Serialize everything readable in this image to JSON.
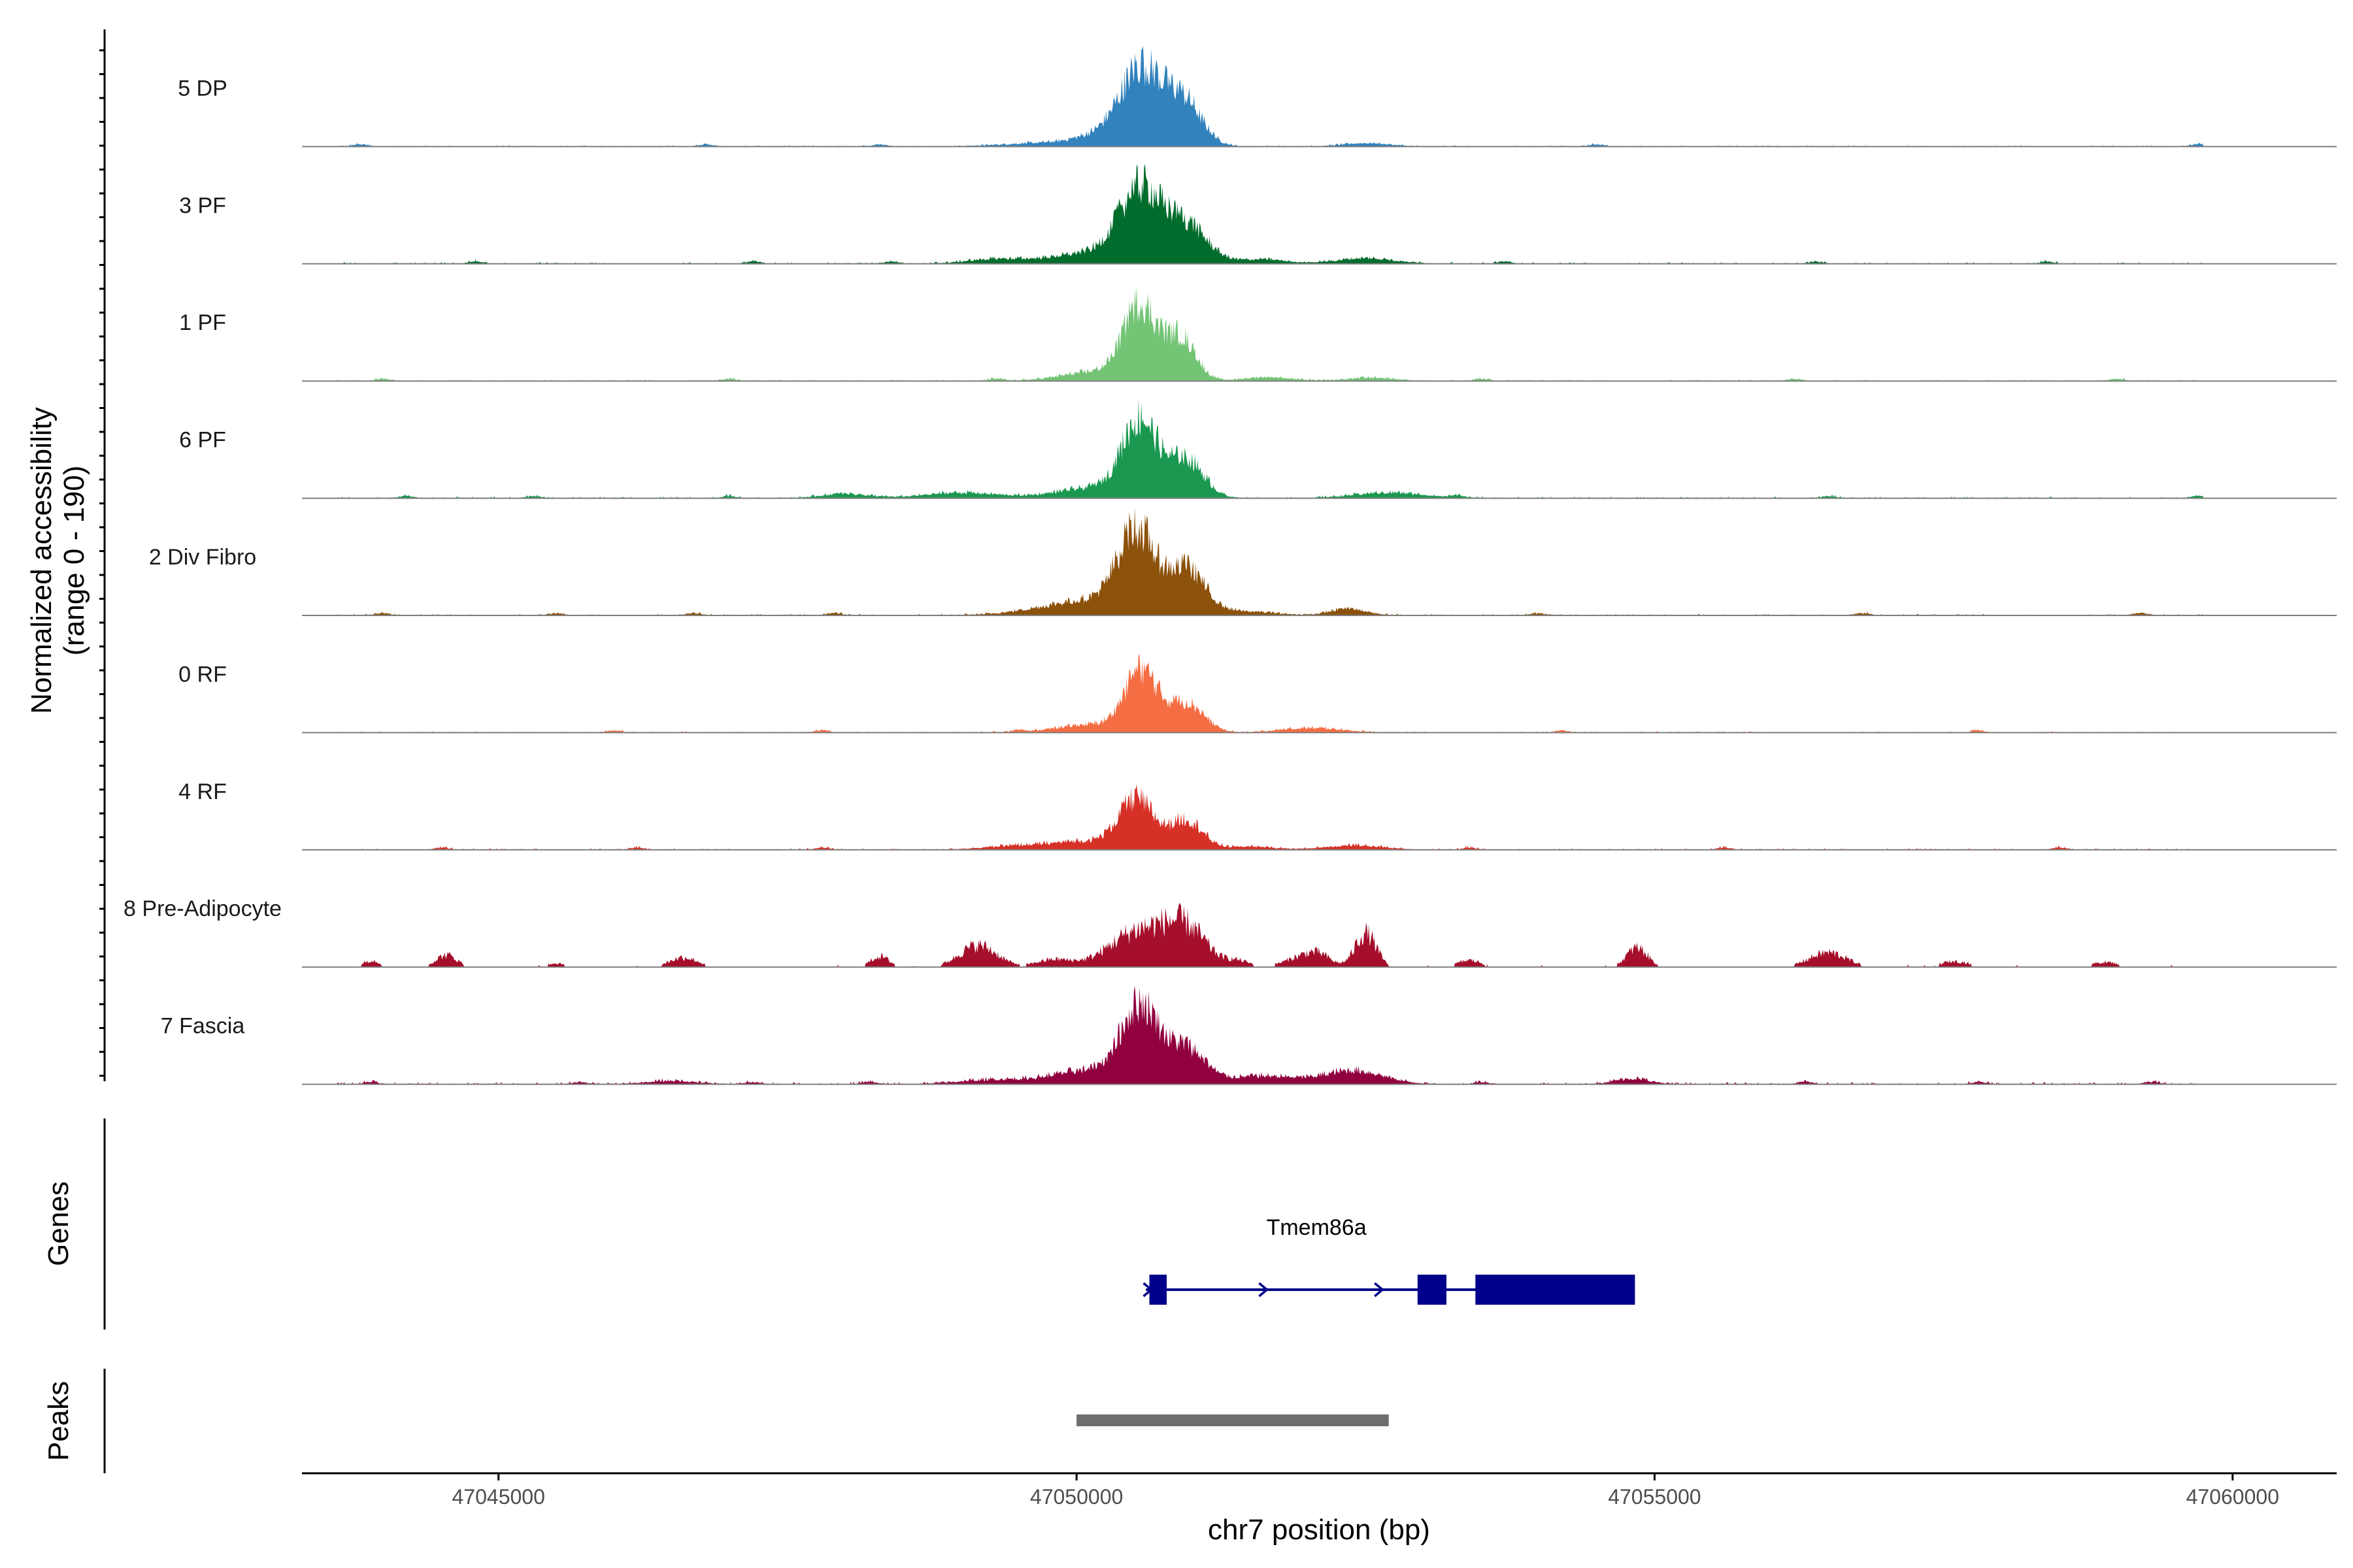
{
  "chart_data": {
    "type": "area",
    "title": "",
    "xlabel": "chr7 position (bp)",
    "ylabel": "Normalized accessibility",
    "ylabel_range": "(range 0 - 190)",
    "ylim": [
      0,
      190
    ],
    "xlim": [
      47043300,
      47060900
    ],
    "x_ticks": [
      47045000,
      47050000,
      47055000,
      47060000
    ],
    "x_tick_labels": [
      "47045000",
      "47050000",
      "47055000",
      "47060000"
    ],
    "tracks": [
      {
        "name": "5 DP",
        "color": "#3182bd",
        "baseline": 3,
        "jitter": 2.5,
        "peaks": [
          [
            47050560,
            130,
            170
          ],
          [
            47050920,
            85,
            160
          ],
          [
            47050300,
            25,
            250
          ],
          [
            47049700,
            6,
            350
          ],
          [
            47052500,
            6,
            200
          ]
        ],
        "spots": [
          47043800,
          47046800,
          47048300,
          47054500,
          47059700
        ]
      },
      {
        "name": "3 PF",
        "color": "#006d2c",
        "baseline": 3,
        "jitter": 3,
        "peaks": [
          [
            47050550,
            130,
            180
          ],
          [
            47050950,
            70,
            180
          ],
          [
            47050150,
            20,
            350
          ],
          [
            47049300,
            8,
            250
          ],
          [
            47052500,
            10,
            250
          ],
          [
            47051600,
            8,
            200
          ]
        ],
        "spots": [
          47044800,
          47047200,
          47048400,
          47053700,
          47056400,
          47058400
        ]
      },
      {
        "name": "1 PF",
        "color": "#74c476",
        "baseline": 2,
        "jitter": 2.5,
        "peaks": [
          [
            47050550,
            135,
            140
          ],
          [
            47050900,
            80,
            130
          ],
          [
            47050200,
            18,
            300
          ],
          [
            47051650,
            7,
            200
          ],
          [
            47052550,
            6,
            200
          ]
        ],
        "spots": [
          47044000,
          47047000,
          47049300,
          47053500,
          47056200,
          47059000
        ]
      },
      {
        "name": "6 PF",
        "color": "#1a9850",
        "baseline": 3,
        "jitter": 3,
        "peaks": [
          [
            47050550,
            135,
            150
          ],
          [
            47050950,
            70,
            150
          ],
          [
            47050200,
            20,
            350
          ],
          [
            47049000,
            10,
            300
          ],
          [
            47052700,
            10,
            300
          ],
          [
            47048000,
            8,
            200
          ]
        ],
        "spots": [
          47044200,
          47045300,
          47047000,
          47053300,
          47056500,
          47059700
        ]
      },
      {
        "name": "2 Div Fibro",
        "color": "#8c510a",
        "baseline": 4,
        "jitter": 3,
        "peaks": [
          [
            47050520,
            150,
            160
          ],
          [
            47050950,
            85,
            160
          ],
          [
            47050150,
            25,
            300
          ],
          [
            47049700,
            8,
            300
          ],
          [
            47052350,
            12,
            150
          ],
          [
            47051450,
            7,
            250
          ]
        ],
        "spots": [
          47044000,
          47045500,
          47046700,
          47047900,
          47054000,
          47056800,
          47059200
        ]
      },
      {
        "name": "0 RF",
        "color": "#f46d43",
        "baseline": 2,
        "jitter": 2.5,
        "peaks": [
          [
            47050560,
            110,
            140
          ],
          [
            47050950,
            55,
            150
          ],
          [
            47050150,
            15,
            300
          ],
          [
            47051900,
            6,
            200
          ],
          [
            47052200,
            5,
            200
          ]
        ],
        "spots": [
          47046000,
          47047800,
          47049500,
          47054200,
          47057800
        ]
      },
      {
        "name": "4 RF",
        "color": "#d73027",
        "baseline": 2,
        "jitter": 3,
        "peaks": [
          [
            47050520,
            90,
            150
          ],
          [
            47050950,
            55,
            140
          ],
          [
            47050100,
            15,
            280
          ],
          [
            47049500,
            7,
            300
          ],
          [
            47052400,
            8,
            250
          ],
          [
            47051500,
            6,
            200
          ]
        ],
        "spots": [
          47044500,
          47046200,
          47047800,
          47053400,
          47055600,
          47058500
        ]
      },
      {
        "name": "8 Pre-Adipocyte",
        "color": "#a50f2b",
        "baseline": 0,
        "jitter": 8,
        "peaks": [
          [
            47050550,
            75,
            260
          ],
          [
            47050950,
            70,
            180
          ],
          [
            47052500,
            70,
            90
          ],
          [
            47049150,
            45,
            160
          ],
          [
            47044550,
            25,
            90
          ],
          [
            47046600,
            20,
            120
          ],
          [
            47054850,
            40,
            90
          ],
          [
            47056500,
            30,
            160
          ],
          [
            47048300,
            22,
            80
          ],
          [
            47051950,
            20,
            150
          ],
          [
            47051400,
            12,
            100
          ],
          [
            47043900,
            14,
            70
          ],
          [
            47045500,
            8,
            100
          ],
          [
            47053400,
            14,
            100
          ],
          [
            47057600,
            12,
            120
          ],
          [
            47058900,
            10,
            120
          ],
          [
            47052100,
            18,
            100
          ],
          [
            47049800,
            15,
            150
          ]
        ],
        "spots": []
      },
      {
        "name": "7 Fascia",
        "color": "#91003f",
        "baseline": 4,
        "jitter": 4,
        "peaks": [
          [
            47050550,
            140,
            160
          ],
          [
            47050950,
            65,
            160
          ],
          [
            47050100,
            25,
            300
          ],
          [
            47052400,
            25,
            250
          ],
          [
            47051600,
            15,
            300
          ],
          [
            47054800,
            10,
            150
          ],
          [
            47049300,
            8,
            300
          ],
          [
            47046500,
            6,
            200
          ]
        ],
        "spots": [
          47043900,
          47045700,
          47047200,
          47048200,
          47053500,
          47056300,
          47057800,
          47059300
        ]
      }
    ],
    "genes": {
      "label": "Genes",
      "name": "Tmem86a",
      "color": "#00008b",
      "start": 47050600,
      "end": 47054750,
      "strand": "+",
      "exons": [
        [
          47050630,
          47050780
        ],
        [
          47052950,
          47053200
        ],
        [
          47053450,
          47054830
        ]
      ],
      "arrow_positions": [
        47050630,
        47051630,
        47052630
      ]
    },
    "peaks_track": {
      "label": "Peaks",
      "color": "#6e6e6e",
      "regions": [
        [
          47050000,
          47052700
        ]
      ]
    }
  }
}
